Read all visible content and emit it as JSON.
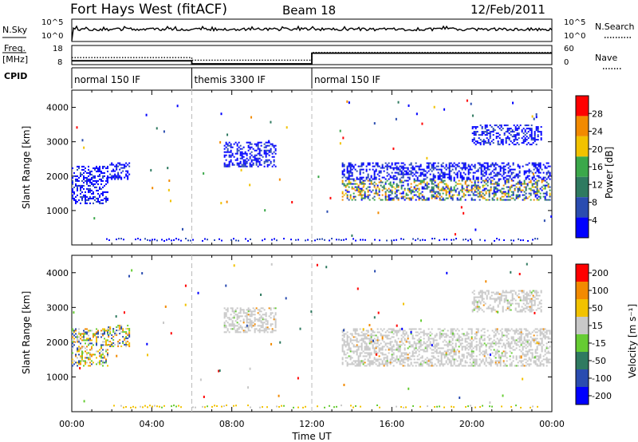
{
  "header": {
    "site": "Fort Hays West (fitACF)",
    "beam": "Beam 18",
    "date": "12/Feb/2011"
  },
  "side_labels": {
    "nsky": "N.Sky",
    "freq_top": "Freq.",
    "freq_unit": "[MHz]",
    "cpid": "CPID",
    "nsearch": "N.Search",
    "nave": "Nave"
  },
  "nsky_panel": {
    "left_ticks": [
      "10^5",
      "10^0"
    ],
    "right_ticks": [
      "10^5",
      "10^0"
    ]
  },
  "freq_panel": {
    "left_ticks": [
      "18",
      "8"
    ],
    "right_ticks": [
      "60",
      "0"
    ],
    "freq_series": {
      "name": "Freq",
      "x": [
        0,
        6,
        6,
        12,
        12,
        24
      ],
      "y": [
        10,
        10,
        8,
        8,
        14,
        14
      ]
    },
    "nave_series": {
      "name": "Nave",
      "x": [
        0,
        6,
        6,
        12,
        12,
        24
      ],
      "y": [
        22,
        22,
        14,
        14,
        38,
        38
      ]
    }
  },
  "cpid_segments": [
    {
      "label": "normal 150 IF",
      "start": 0,
      "end": 6
    },
    {
      "label": "themis 3300 IF",
      "start": 6,
      "end": 12
    },
    {
      "label": "normal 150 IF",
      "start": 12,
      "end": 24
    }
  ],
  "chart_data": [
    {
      "type": "heatmap",
      "title": "Power",
      "ylabel": "Slant Range [km]",
      "xlabel": "Time UT",
      "xlim": [
        0,
        24
      ],
      "ylim": [
        0,
        4500
      ],
      "y_ticks": [
        "1000",
        "2000",
        "3000",
        "4000"
      ],
      "colorbar_label": "Power [dB]",
      "colorbar_ticks": [
        "4",
        "8",
        "12",
        "16",
        "20",
        "24",
        "28"
      ],
      "colorbar_range": [
        0,
        32
      ],
      "colors": [
        "#0000ff",
        "#2a4cb0",
        "#2f7a60",
        "#3ba84a",
        "#f2c200",
        "#f28a00",
        "#ff0000"
      ],
      "regions": [
        {
          "x": [
            0.0,
            1.8
          ],
          "y": [
            1200,
            2300
          ],
          "level": "low"
        },
        {
          "x": [
            1.8,
            2.9
          ],
          "y": [
            1900,
            2400
          ],
          "level": "low"
        },
        {
          "x": [
            7.6,
            10.2
          ],
          "y": [
            2300,
            3000
          ],
          "level": "low"
        },
        {
          "x": [
            13.5,
            23.9
          ],
          "y": [
            1300,
            2400
          ],
          "level": "mixed"
        },
        {
          "x": [
            20.0,
            23.5
          ],
          "y": [
            2900,
            3500
          ],
          "level": "low"
        }
      ]
    },
    {
      "type": "heatmap",
      "title": "Velocity",
      "ylabel": "Slant Range [km]",
      "xlabel": "Time UT",
      "xlim": [
        0,
        24
      ],
      "ylim": [
        0,
        4500
      ],
      "y_ticks": [
        "1000",
        "2000",
        "3000",
        "4000"
      ],
      "x_ticks": [
        "00:00",
        "04:00",
        "08:00",
        "12:00",
        "16:00",
        "20:00",
        "00:00"
      ],
      "colorbar_label": "Velocity [m s⁻¹]",
      "colorbar_ticks": [
        "200",
        "100",
        "50",
        "15",
        "-15",
        "-50",
        "-100",
        "-200"
      ],
      "colors": [
        "#0000ff",
        "#2a4cb0",
        "#2f7a60",
        "#66cc33",
        "#c8c8c8",
        "#f2c200",
        "#f28a00",
        "#ff0000"
      ],
      "regions": [
        {
          "x": [
            0.0,
            1.8
          ],
          "y": [
            1300,
            2400
          ],
          "level": "mixed"
        },
        {
          "x": [
            1.8,
            2.9
          ],
          "y": [
            1900,
            2500
          ],
          "level": "mixed"
        },
        {
          "x": [
            7.6,
            10.2
          ],
          "y": [
            2300,
            3000
          ],
          "level": "grey"
        },
        {
          "x": [
            13.5,
            23.9
          ],
          "y": [
            1300,
            2400
          ],
          "level": "grey"
        },
        {
          "x": [
            20.0,
            23.5
          ],
          "y": [
            2900,
            3500
          ],
          "level": "grey"
        }
      ]
    }
  ]
}
